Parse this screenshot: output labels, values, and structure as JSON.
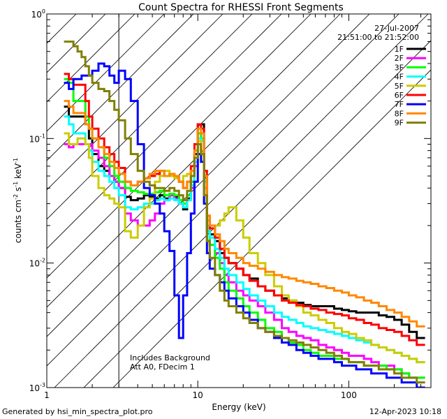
{
  "chart_data": {
    "type": "line",
    "title": "Count Spectra for RHESSI Front Segments",
    "xlabel": "Energy (keV)",
    "ylabel_parts": [
      "counts cm",
      "-2",
      " s",
      "-1",
      " keV",
      "-1"
    ],
    "xscale": "log",
    "yscale": "log",
    "xlim": [
      1,
      350
    ],
    "ylim": [
      0.001,
      1
    ],
    "x_ticks": [
      {
        "value": 1,
        "label": "1"
      },
      {
        "value": 10,
        "label": "10"
      },
      {
        "value": 100,
        "label": "100"
      }
    ],
    "y_ticks": [
      {
        "value": 1,
        "base": "10",
        "exp": "0"
      },
      {
        "value": 0.1,
        "base": "10",
        "exp": "-1"
      },
      {
        "value": 0.01,
        "base": "10",
        "exp": "-2"
      },
      {
        "value": 0.001,
        "base": "10",
        "exp": "-3"
      }
    ],
    "hatched_region_upper_keV": 3.0,
    "header_lines": [
      "27-Jul-2007",
      "21:51:00 to 21:52:00"
    ],
    "annotations": [
      "Includes Background",
      "Att A0, FDecim 1"
    ],
    "energy_edges_keV": [
      1.3,
      1.4,
      1.5,
      1.6,
      1.7,
      1.8,
      1.9,
      2.0,
      2.2,
      2.4,
      2.6,
      2.8,
      3.0,
      3.3,
      3.6,
      4.0,
      4.4,
      4.8,
      5.2,
      5.6,
      6.0,
      6.5,
      7.0,
      7.5,
      8.0,
      8.5,
      9.0,
      9.5,
      10.0,
      10.5,
      11.0,
      11.5,
      12.0,
      13.0,
      14.0,
      15.0,
      16.0,
      18.0,
      20.0,
      22.0,
      25.0,
      28.0,
      32.0,
      36.0,
      40.0,
      45.0,
      50.0,
      56.0,
      63.0,
      71.0,
      80.0,
      90.0,
      100.0,
      112.0,
      126.0,
      141.0,
      158.0,
      178.0,
      200.0,
      224.0,
      251.0,
      282.0,
      320.0
    ],
    "series": [
      {
        "name": "1F",
        "color": "#000000",
        "values": [
          0.18,
          0.15,
          0.15,
          0.15,
          0.15,
          0.13,
          0.1,
          0.075,
          0.06,
          0.055,
          0.05,
          0.045,
          0.04,
          0.034,
          0.032,
          0.033,
          0.035,
          0.034,
          0.033,
          0.035,
          0.033,
          0.035,
          0.034,
          0.03,
          0.027,
          0.033,
          0.045,
          0.075,
          0.13,
          0.13,
          0.05,
          0.02,
          0.017,
          0.015,
          0.012,
          0.011,
          0.01,
          0.009,
          0.008,
          0.0075,
          0.0065,
          0.006,
          0.0055,
          0.0052,
          0.005,
          0.0048,
          0.0046,
          0.0045,
          0.0045,
          0.0045,
          0.0043,
          0.0042,
          0.0041,
          0.004,
          0.004,
          0.004,
          0.0038,
          0.0037,
          0.0035,
          0.0032,
          0.0028,
          0.0025
        ]
      },
      {
        "name": "2F",
        "color": "#ff00ff",
        "values": [
          0.09,
          0.085,
          0.09,
          0.09,
          0.09,
          0.09,
          0.09,
          0.08,
          0.07,
          0.06,
          0.05,
          0.045,
          0.04,
          0.025,
          0.022,
          0.02,
          0.02,
          0.022,
          0.025,
          0.03,
          0.032,
          0.035,
          0.033,
          0.03,
          0.03,
          0.035,
          0.04,
          0.06,
          0.09,
          0.08,
          0.04,
          0.018,
          0.014,
          0.012,
          0.01,
          0.008,
          0.007,
          0.006,
          0.0055,
          0.005,
          0.0045,
          0.004,
          0.0035,
          0.003,
          0.0028,
          0.0026,
          0.0025,
          0.0024,
          0.0022,
          0.0021,
          0.002,
          0.0019,
          0.0018,
          0.0018,
          0.0017,
          0.0016,
          0.0015,
          0.0015,
          0.0014,
          0.0013,
          0.0012,
          0.0012
        ]
      },
      {
        "name": "3F",
        "color": "#00ff00",
        "values": [
          0.3,
          0.28,
          0.2,
          0.2,
          0.2,
          0.15,
          0.12,
          0.1,
          0.085,
          0.07,
          0.06,
          0.05,
          0.045,
          0.04,
          0.038,
          0.037,
          0.036,
          0.036,
          0.037,
          0.038,
          0.035,
          0.036,
          0.035,
          0.032,
          0.03,
          0.035,
          0.045,
          0.07,
          0.11,
          0.1,
          0.045,
          0.018,
          0.014,
          0.011,
          0.009,
          0.007,
          0.006,
          0.0052,
          0.0045,
          0.004,
          0.0035,
          0.003,
          0.0028,
          0.0025,
          0.0023,
          0.0022,
          0.002,
          0.0019,
          0.0018,
          0.0018,
          0.0017,
          0.0017,
          0.0016,
          0.0016,
          0.0015,
          0.0015,
          0.0015,
          0.0014,
          0.0014,
          0.0013,
          0.0012,
          0.0012
        ]
      },
      {
        "name": "4F",
        "color": "#00ffff",
        "values": [
          0.15,
          0.13,
          0.11,
          0.11,
          0.11,
          0.09,
          0.08,
          0.065,
          0.055,
          0.05,
          0.045,
          0.04,
          0.035,
          0.028,
          0.027,
          0.028,
          0.03,
          0.03,
          0.032,
          0.033,
          0.032,
          0.033,
          0.032,
          0.03,
          0.028,
          0.032,
          0.042,
          0.065,
          0.1,
          0.095,
          0.045,
          0.02,
          0.016,
          0.013,
          0.011,
          0.009,
          0.008,
          0.007,
          0.0062,
          0.0055,
          0.005,
          0.0045,
          0.004,
          0.0037,
          0.0035,
          0.0033,
          0.0031,
          0.003,
          0.0029,
          0.0028,
          0.0027,
          0.0026,
          0.0025,
          0.0024,
          0.0023,
          0.0022,
          0.0021,
          0.002,
          0.0019,
          0.0018,
          0.0017,
          0.0016
        ]
      },
      {
        "name": "5F",
        "color": "#cccc00",
        "values": [
          0.11,
          0.09,
          0.09,
          0.1,
          0.1,
          0.09,
          0.07,
          0.05,
          0.04,
          0.035,
          0.033,
          0.03,
          0.028,
          0.018,
          0.016,
          0.02,
          0.028,
          0.033,
          0.045,
          0.05,
          0.055,
          0.05,
          0.048,
          0.045,
          0.05,
          0.052,
          0.055,
          0.07,
          0.095,
          0.08,
          0.04,
          0.022,
          0.02,
          0.02,
          0.022,
          0.025,
          0.028,
          0.022,
          0.016,
          0.012,
          0.01,
          0.008,
          0.0065,
          0.0055,
          0.005,
          0.0045,
          0.004,
          0.0038,
          0.0035,
          0.0033,
          0.003,
          0.0028,
          0.0027,
          0.0025,
          0.0024,
          0.0022,
          0.0021,
          0.002,
          0.0019,
          0.0018,
          0.0017,
          0.0016
        ]
      },
      {
        "name": "6F",
        "color": "#ff0000",
        "values": [
          0.33,
          0.3,
          0.27,
          0.27,
          0.27,
          0.2,
          0.15,
          0.12,
          0.1,
          0.085,
          0.075,
          0.065,
          0.058,
          0.045,
          0.042,
          0.045,
          0.048,
          0.05,
          0.052,
          0.055,
          0.05,
          0.052,
          0.05,
          0.045,
          0.04,
          0.045,
          0.06,
          0.09,
          0.13,
          0.12,
          0.055,
          0.024,
          0.019,
          0.016,
          0.013,
          0.011,
          0.01,
          0.009,
          0.008,
          0.0072,
          0.0065,
          0.006,
          0.0055,
          0.005,
          0.0048,
          0.0046,
          0.0045,
          0.0043,
          0.0042,
          0.004,
          0.0039,
          0.0038,
          0.0036,
          0.0035,
          0.0033,
          0.0032,
          0.003,
          0.0029,
          0.0028,
          0.0026,
          0.0024,
          0.0022
        ]
      },
      {
        "name": "7F",
        "color": "#0000ff",
        "values": [
          0.28,
          0.25,
          0.3,
          0.3,
          0.32,
          0.32,
          0.32,
          0.35,
          0.4,
          0.38,
          0.32,
          0.28,
          0.35,
          0.3,
          0.2,
          0.09,
          0.04,
          0.035,
          0.03,
          0.025,
          0.018,
          0.0125,
          0.0055,
          0.0025,
          0.0055,
          0.012,
          0.025,
          0.045,
          0.075,
          0.065,
          0.03,
          0.012,
          0.009,
          0.008,
          0.007,
          0.006,
          0.0052,
          0.0045,
          0.004,
          0.0035,
          0.003,
          0.0028,
          0.0025,
          0.0023,
          0.0022,
          0.002,
          0.0019,
          0.0018,
          0.0017,
          0.0017,
          0.0016,
          0.0015,
          0.0015,
          0.0014,
          0.0014,
          0.0013,
          0.0013,
          0.0012,
          0.0012,
          0.0011,
          0.0011,
          0.001
        ]
      },
      {
        "name": "8F",
        "color": "#ff8800",
        "values": [
          0.2,
          0.18,
          0.16,
          0.16,
          0.16,
          0.13,
          0.12,
          0.1,
          0.085,
          0.075,
          0.065,
          0.058,
          0.052,
          0.045,
          0.042,
          0.045,
          0.048,
          0.052,
          0.055,
          0.055,
          0.05,
          0.052,
          0.05,
          0.045,
          0.04,
          0.045,
          0.055,
          0.08,
          0.12,
          0.11,
          0.05,
          0.024,
          0.02,
          0.017,
          0.015,
          0.013,
          0.012,
          0.011,
          0.01,
          0.0095,
          0.009,
          0.0085,
          0.008,
          0.0077,
          0.0075,
          0.0072,
          0.007,
          0.0068,
          0.0065,
          0.0063,
          0.006,
          0.0058,
          0.0055,
          0.0053,
          0.005,
          0.0048,
          0.0045,
          0.0042,
          0.004,
          0.0037,
          0.0034,
          0.0031
        ]
      },
      {
        "name": "9F",
        "color": "#808000",
        "values": [
          0.6,
          0.6,
          0.55,
          0.5,
          0.45,
          0.38,
          0.32,
          0.28,
          0.25,
          0.24,
          0.2,
          0.17,
          0.14,
          0.1,
          0.075,
          0.055,
          0.045,
          0.042,
          0.04,
          0.04,
          0.038,
          0.04,
          0.038,
          0.035,
          0.032,
          0.038,
          0.05,
          0.07,
          0.09,
          0.075,
          0.035,
          0.015,
          0.011,
          0.008,
          0.006,
          0.005,
          0.0045,
          0.004,
          0.0036,
          0.0033,
          0.003,
          0.0028,
          0.0026,
          0.0025,
          0.0024,
          0.0023,
          0.0022,
          0.0021,
          0.002,
          0.0019,
          0.0018,
          0.0017,
          0.0016,
          0.0016,
          0.0015,
          0.0015,
          0.0014,
          0.0014,
          0.0013,
          0.0012,
          0.0012,
          0.0011
        ]
      }
    ]
  },
  "footer": {
    "generated_by": "Generated by hsi_min_spectra_plot.pro",
    "timestamp": "12-Apr-2023 10:18"
  }
}
